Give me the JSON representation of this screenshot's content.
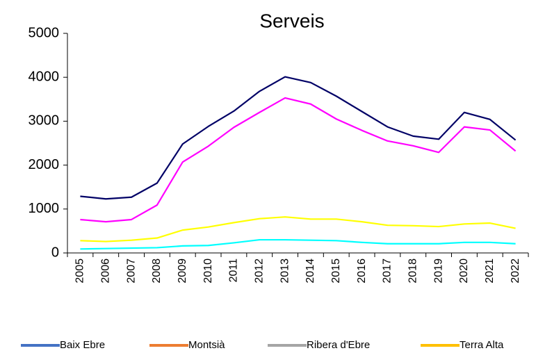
{
  "chart_data": {
    "type": "line",
    "title": "Serveis",
    "categories": [
      "2005",
      "2006",
      "2007",
      "2008",
      "2009",
      "2010",
      "2011",
      "2012",
      "2013",
      "2014",
      "2015",
      "2016",
      "2017",
      "2018",
      "2019",
      "2020",
      "2021",
      "2022"
    ],
    "series": [
      {
        "name": "Baix Ebre",
        "color": "#000066",
        "legend_color": "#4472c4",
        "values": [
          1290,
          1230,
          1270,
          1590,
          2480,
          2880,
          3230,
          3680,
          4010,
          3880,
          3570,
          3220,
          2870,
          2660,
          2590,
          3200,
          3040,
          2570
        ]
      },
      {
        "name": "Montsià",
        "color": "#ff00ff",
        "legend_color": "#ed7d31",
        "values": [
          760,
          710,
          760,
          1090,
          2070,
          2430,
          2860,
          3200,
          3530,
          3390,
          3050,
          2790,
          2550,
          2440,
          2290,
          2870,
          2800,
          2320
        ]
      },
      {
        "name": "Ribera d'Ebre",
        "color": "#00ffff",
        "legend_color": "#a5a5a5",
        "values": [
          90,
          100,
          110,
          120,
          160,
          170,
          230,
          300,
          300,
          290,
          280,
          240,
          210,
          210,
          210,
          240,
          240,
          210
        ]
      },
      {
        "name": "Terra Alta",
        "color": "#ffff00",
        "legend_color": "#ffc000",
        "values": [
          280,
          260,
          290,
          340,
          520,
          590,
          690,
          780,
          820,
          770,
          770,
          710,
          630,
          620,
          600,
          660,
          680,
          560
        ]
      }
    ],
    "ylim": [
      0,
      5000
    ],
    "yticks": [
      0,
      1000,
      2000,
      3000,
      4000,
      5000
    ],
    "grid": false,
    "legend": "bottom"
  }
}
